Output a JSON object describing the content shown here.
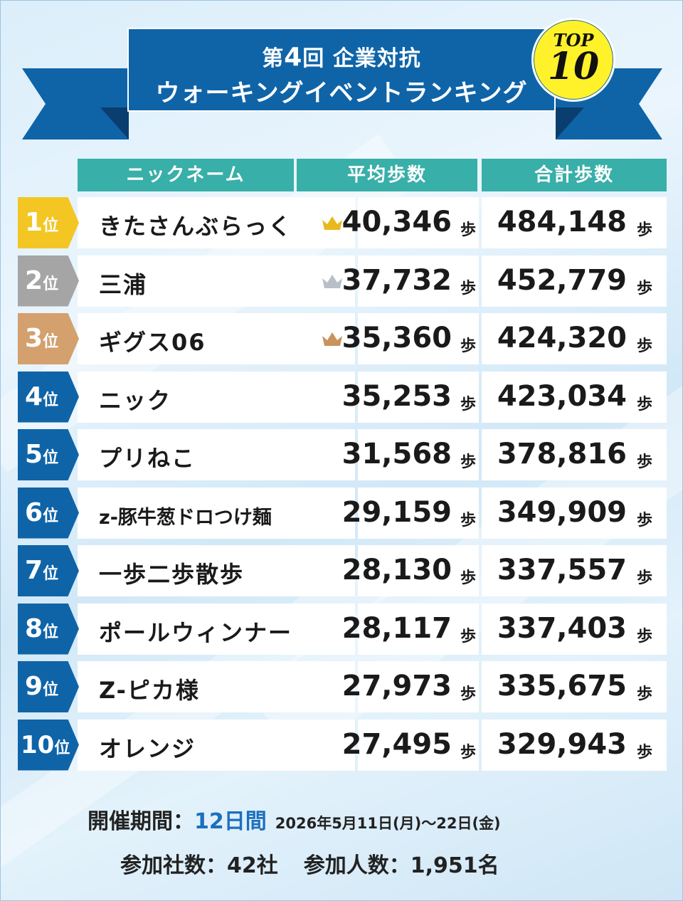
{
  "banner": {
    "line1_prefix": "第",
    "line1_num": "4",
    "line1_suffix": "回 企業対抗",
    "line2": "ウォーキングイベントランキング",
    "badge_top": "TOP",
    "badge_num": "10"
  },
  "headers": {
    "nickname": "ニックネーム",
    "avg": "平均歩数",
    "total": "合計歩数"
  },
  "unit_rank": "位",
  "unit_steps": "歩",
  "rows": [
    {
      "rank": "1",
      "name": "きたさんぶらっく",
      "avg": "40,346",
      "total": "484,148",
      "crown": "gold-crown-icon",
      "rank_color": "#f3c623"
    },
    {
      "rank": "2",
      "name": "三浦",
      "avg": "37,732",
      "total": "452,779",
      "crown": "silver-crown-icon",
      "rank_color": "#a5a5a5"
    },
    {
      "rank": "3",
      "name": "ギグス06",
      "avg": "35,360",
      "total": "424,320",
      "crown": "bronze-crown-icon",
      "rank_color": "#d3a06e"
    },
    {
      "rank": "4",
      "name": "ニック",
      "avg": "35,253",
      "total": "423,034"
    },
    {
      "rank": "5",
      "name": "プリねこ",
      "avg": "31,568",
      "total": "378,816"
    },
    {
      "rank": "6",
      "name": "z-豚牛葱ドロつけ麺",
      "avg": "29,159",
      "total": "349,909"
    },
    {
      "rank": "7",
      "name": "一歩二歩散歩",
      "avg": "28,130",
      "total": "337,557"
    },
    {
      "rank": "8",
      "name": "ポールウィンナー",
      "avg": "28,117",
      "total": "337,403"
    },
    {
      "rank": "9",
      "name": "Z-ピカ様",
      "avg": "27,973",
      "total": "335,675"
    },
    {
      "rank": "10",
      "name": "オレンジ",
      "avg": "27,495",
      "total": "329,943"
    }
  ],
  "footer": {
    "period_label": "開催期間：",
    "period_days": "12日間",
    "period_dates": "2026年5月11日(月)～22日(金)",
    "companies": "参加社数：42社",
    "participants": "参加人数：1,951名"
  },
  "colors": {
    "banner": "#0f64a8",
    "header": "#38afa8",
    "rank_default": "#0f64a8",
    "badge": "#fff22a",
    "accent_text": "#1d6fbe"
  }
}
